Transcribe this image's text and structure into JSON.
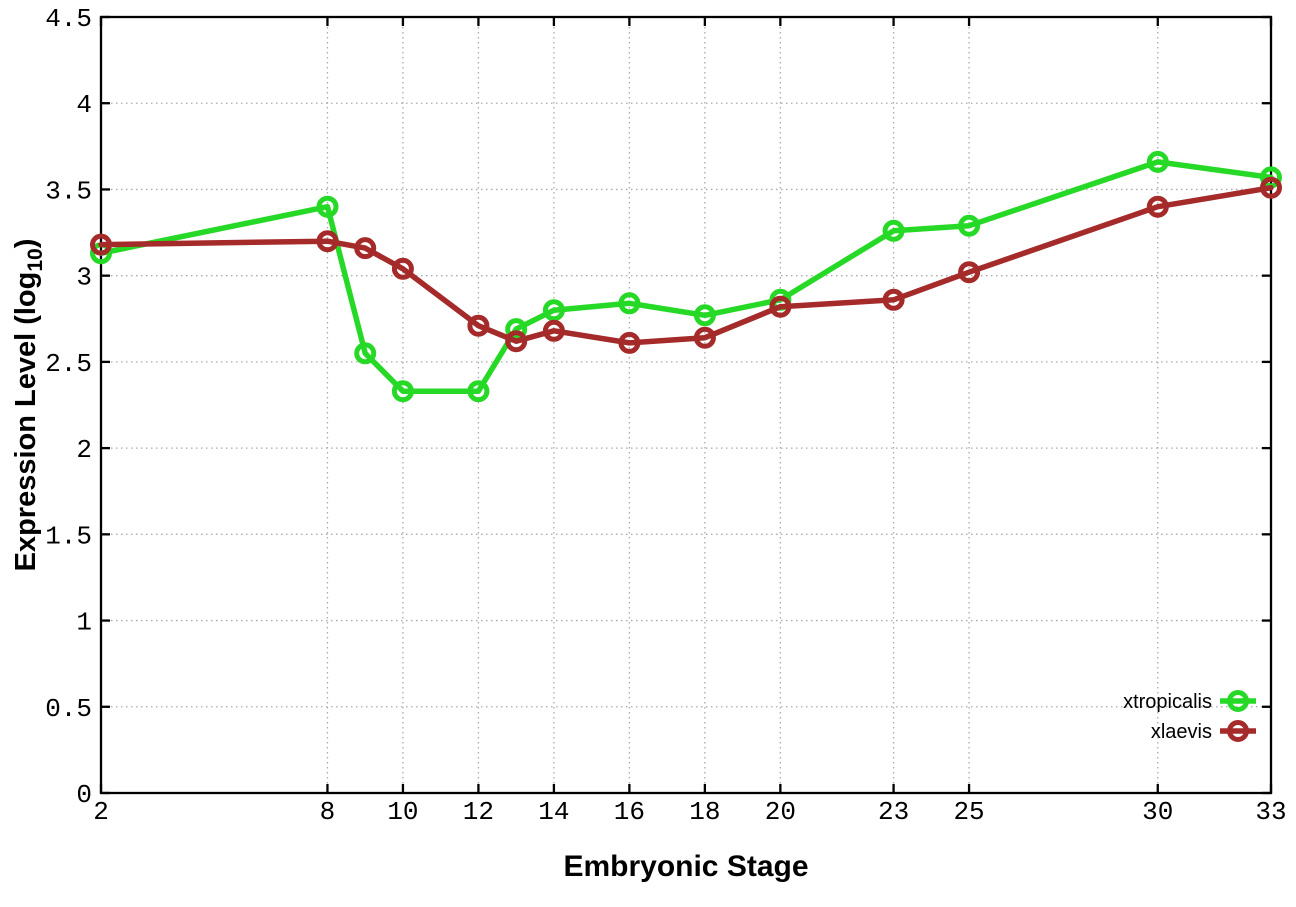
{
  "page": {
    "background": "#ffffff"
  },
  "figure": {
    "x_axis_title": "Embryonic Stage",
    "y_axis_title_main": "Expression Level (log",
    "y_axis_title_sub": "10",
    "y_axis_title_close": ")"
  },
  "chart_data": {
    "type": "line",
    "title": "",
    "xlabel": "Embryonic Stage",
    "ylabel": "Expression Level (log10)",
    "xlim": [
      2,
      33
    ],
    "ylim": [
      0,
      4.5
    ],
    "grid": true,
    "grid_style": "dotted",
    "legend_position": "inside-bottom-right",
    "x_tick_values": [
      2,
      8,
      10,
      12,
      14,
      16,
      18,
      20,
      23,
      25,
      30,
      33
    ],
    "x_tick_labels": [
      "2",
      "8",
      "10",
      "12",
      "14",
      "16",
      "18",
      "20",
      "23",
      "25",
      "30",
      "33"
    ],
    "y_tick_values": [
      0,
      0.5,
      1,
      1.5,
      2,
      2.5,
      3,
      3.5,
      4,
      4.5
    ],
    "y_tick_labels": [
      "0",
      "0.5",
      "1",
      "1.5",
      "2",
      "2.5",
      "3",
      "3.5",
      "4",
      "4.5"
    ],
    "x": [
      2,
      8,
      9,
      10,
      12,
      13,
      14,
      16,
      18,
      20,
      23,
      25,
      30,
      33
    ],
    "series": [
      {
        "name": "xtropicalis",
        "color": "#26d926",
        "marker": "open-circle",
        "values": [
          3.13,
          3.4,
          2.55,
          2.33,
          2.33,
          2.69,
          2.8,
          2.84,
          2.77,
          2.86,
          3.26,
          3.29,
          3.66,
          3.57
        ]
      },
      {
        "name": "xlaevis",
        "color": "#a52a2a",
        "marker": "open-circle",
        "values": [
          3.18,
          3.2,
          3.16,
          3.04,
          2.71,
          2.62,
          2.68,
          2.61,
          2.64,
          2.82,
          2.86,
          3.02,
          3.4,
          3.51
        ]
      }
    ],
    "colors": {
      "grid": "#aaaaaa",
      "axis": "#000000",
      "tick_text": "#000000",
      "background": "#ffffff"
    }
  }
}
